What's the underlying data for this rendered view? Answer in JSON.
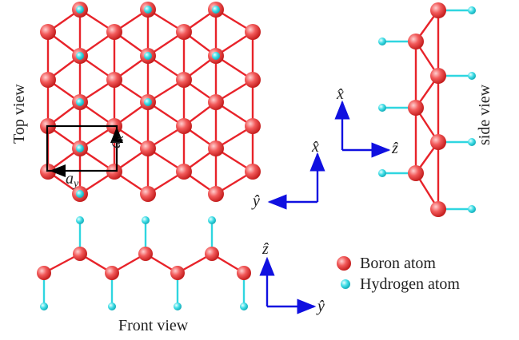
{
  "top_view": {
    "label": "Top view",
    "lattice": {
      "a_x": {
        "symbol": "a",
        "subscript": "x"
      },
      "a_y": {
        "symbol": "a",
        "subscript": "y"
      }
    },
    "axes": {
      "vertical": "x̂",
      "horizontal": "ŷ"
    }
  },
  "side_view": {
    "label": "side view",
    "axes": {
      "vertical": "x̂",
      "horizontal": "ẑ"
    }
  },
  "front_view": {
    "label": "Front view",
    "axes": {
      "vertical": "ẑ",
      "horizontal": "ŷ"
    }
  },
  "legend": {
    "items": [
      {
        "label": "Boron atom"
      },
      {
        "label": "Hydrogen atom"
      }
    ]
  }
}
